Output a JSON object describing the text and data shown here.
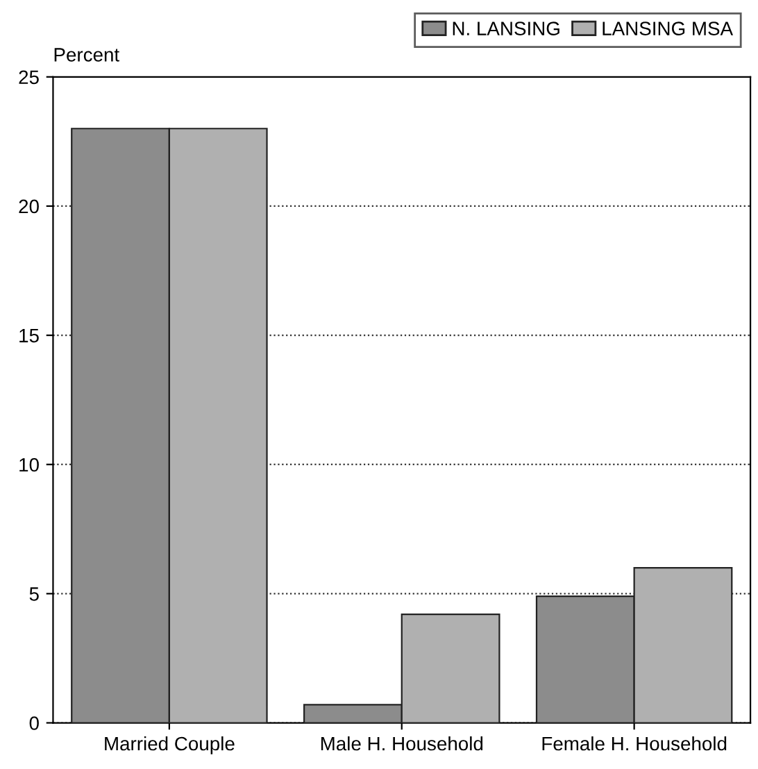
{
  "chart_data": {
    "type": "bar",
    "ylabel": "Percent",
    "categories": [
      "Married Couple",
      "Male H. Household",
      "Female H. Household"
    ],
    "series": [
      {
        "name": "N. LANSING",
        "color": "#8c8c8c",
        "values": [
          23,
          0.7,
          4.9
        ]
      },
      {
        "name": "LANSING MSA",
        "color": "#b0b0b0",
        "values": [
          23,
          4.2,
          6.0
        ]
      }
    ],
    "ylim": [
      0,
      25
    ],
    "yticks": [
      0,
      5,
      10,
      15,
      20,
      25
    ],
    "grid": "y",
    "legend": "top right"
  }
}
